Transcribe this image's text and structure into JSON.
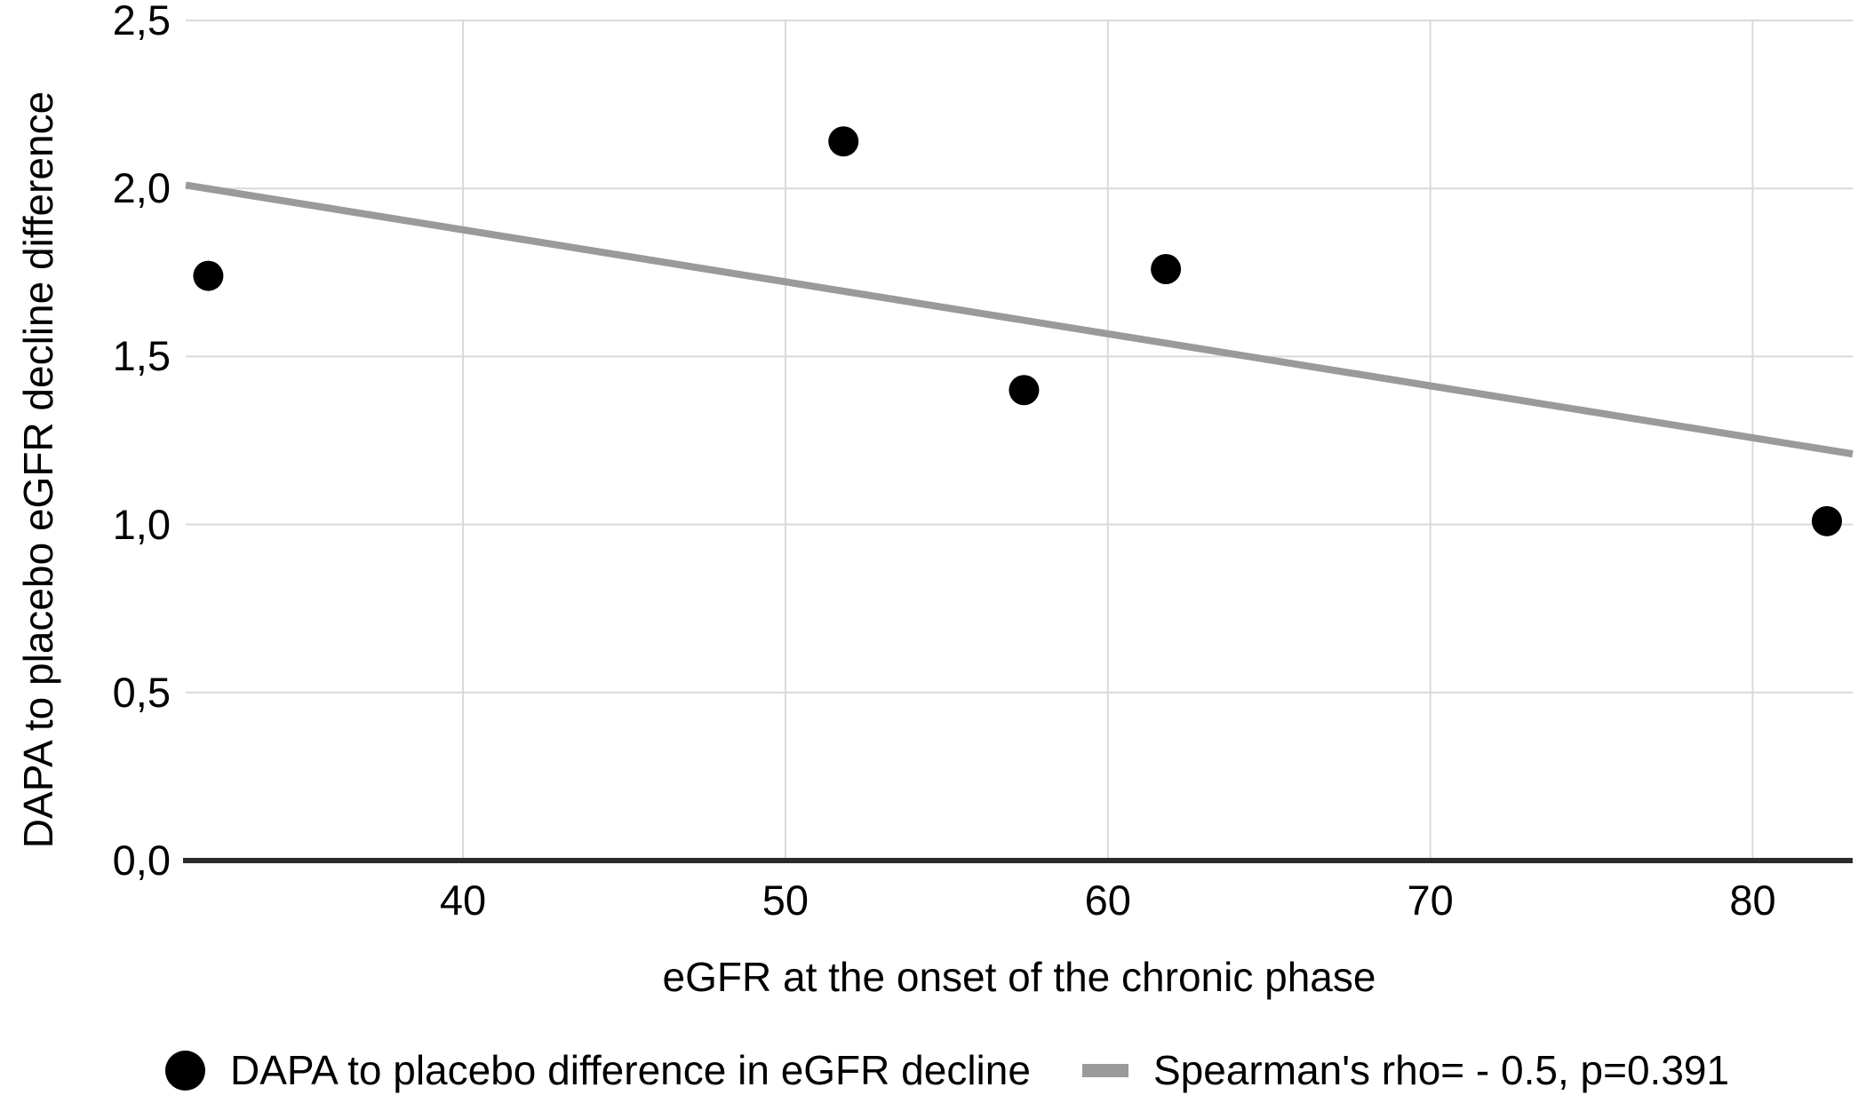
{
  "chart_data": {
    "type": "scatter",
    "title": "",
    "xlabel": "eGFR at the onset of the chronic phase",
    "ylabel": "DAPA to placebo eGFR decline difference",
    "xlim": [
      31.4,
      83.1
    ],
    "ylim": [
      0,
      2.5
    ],
    "grid": true,
    "xticks": [
      {
        "value": 40,
        "label": "40"
      },
      {
        "value": 50,
        "label": "50"
      },
      {
        "value": 60,
        "label": "60"
      },
      {
        "value": 70,
        "label": "70"
      },
      {
        "value": 80,
        "label": "80"
      }
    ],
    "yticks": [
      {
        "value": 0.0,
        "label": "0,0"
      },
      {
        "value": 0.5,
        "label": "0,5"
      },
      {
        "value": 1.0,
        "label": "1,0"
      },
      {
        "value": 1.5,
        "label": "1,5"
      },
      {
        "value": 2.0,
        "label": "2,0"
      },
      {
        "value": 2.5,
        "label": "2,5"
      }
    ],
    "series": [
      {
        "name": "DAPA to placebo difference in eGFR decline",
        "type": "scatter",
        "color": "#000000",
        "marker_radius": 17,
        "points": [
          {
            "x": 32.1,
            "y": 1.74
          },
          {
            "x": 51.8,
            "y": 2.14
          },
          {
            "x": 57.4,
            "y": 1.4
          },
          {
            "x": 61.8,
            "y": 1.76
          },
          {
            "x": 82.3,
            "y": 1.01
          }
        ]
      },
      {
        "name": "Spearman's rho= - 0.5, p=0.391",
        "type": "line",
        "color": "#9a9a9a",
        "stroke_width": 8,
        "points": [
          {
            "x": 31.4,
            "y": 2.01
          },
          {
            "x": 83.1,
            "y": 1.21
          }
        ]
      }
    ],
    "legend": {
      "position": "bottom",
      "items": [
        {
          "marker": "dot",
          "label": "DAPA to placebo difference in eGFR decline"
        },
        {
          "marker": "line",
          "label": "Spearman's rho= - 0.5, p=0.391"
        }
      ]
    },
    "colors": {
      "point": "#000000",
      "trend": "#9a9a9a",
      "gridline": "#d9d9d9",
      "axis": "#2b2b2b",
      "text": "#000000",
      "background": "#ffffff"
    }
  }
}
